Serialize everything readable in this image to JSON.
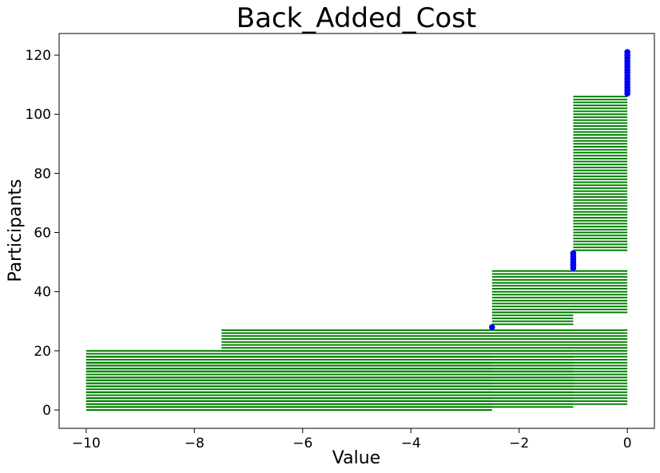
{
  "chart_data": {
    "type": "scatter",
    "title": "Back_Added_Cost",
    "xlabel": "Value",
    "ylabel": "Participants",
    "xlim": [
      -10.5,
      0.5
    ],
    "ylim": [
      -6.2,
      127.3
    ],
    "xticks": [
      -10,
      -8,
      -6,
      -4,
      -2,
      0
    ],
    "xtick_labels": [
      "−10",
      "−8",
      "−6",
      "−4",
      "−2",
      "0"
    ],
    "yticks": [
      0,
      20,
      40,
      60,
      80,
      100,
      120
    ],
    "ytick_labels": [
      "0",
      "20",
      "40",
      "60",
      "80",
      "100",
      "120"
    ],
    "grid": false,
    "legend": "none",
    "colors": {
      "range_lines": "#008000",
      "points": "#0000ff"
    },
    "range_segments": [
      {
        "y_from": 0,
        "y_to": 19,
        "x_from": -10,
        "x_to": -2.5
      },
      {
        "y_from": 1,
        "y_to": 20,
        "x_from": -10,
        "x_to": -1
      },
      {
        "y_from": 2,
        "y_to": 19,
        "x_from": -10,
        "x_to": 0
      },
      {
        "y_from": 20,
        "y_to": 27,
        "x_from": -7.5,
        "x_to": 0
      },
      {
        "y_from": 29,
        "y_to": 33,
        "x_from": -2.5,
        "x_to": -1
      },
      {
        "y_from": 33,
        "y_to": 47,
        "x_from": -2.5,
        "x_to": 0
      },
      {
        "y_from": 54,
        "y_to": 106,
        "x_from": -1,
        "x_to": 0
      }
    ],
    "points": [
      {
        "x": -2.5,
        "y_from": 28,
        "y_to": 28
      },
      {
        "x": -1,
        "y_from": 48,
        "y_to": 53
      },
      {
        "x": 0,
        "y_from": 107,
        "y_to": 121
      }
    ]
  }
}
